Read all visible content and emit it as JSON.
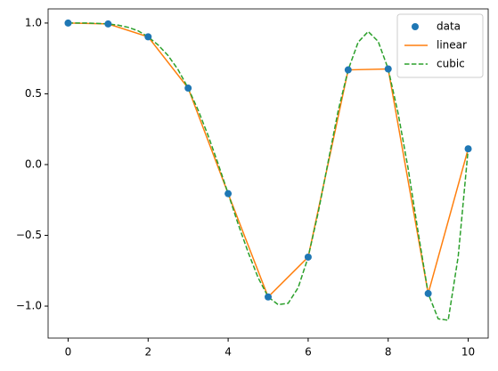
{
  "chart_data": {
    "type": "line",
    "series": [
      {
        "name": "data",
        "color": "#1f77b4",
        "style": "markers",
        "x": [
          0,
          1,
          2,
          3,
          4,
          5,
          6,
          7,
          8,
          9,
          10
        ],
        "values": [
          1.0,
          0.9938,
          0.9028,
          0.5403,
          -0.2055,
          -0.9355,
          -0.6536,
          0.669,
          0.6757,
          -0.9111,
          0.1114
        ]
      },
      {
        "name": "linear",
        "color": "#ff7f0e",
        "style": "solid",
        "x": [
          0,
          1,
          2,
          3,
          4,
          5,
          6,
          7,
          8,
          9,
          10
        ],
        "values": [
          1.0,
          0.9938,
          0.9028,
          0.5403,
          -0.2055,
          -0.9355,
          -0.6536,
          0.669,
          0.6757,
          -0.9111,
          0.1114
        ]
      },
      {
        "name": "cubic",
        "color": "#2ca02c",
        "style": "dashed",
        "x": [
          0,
          0.25,
          0.5,
          0.75,
          1,
          1.25,
          1.5,
          1.75,
          2,
          2.25,
          2.5,
          2.75,
          3,
          3.25,
          3.5,
          3.75,
          4,
          4.25,
          4.5,
          4.75,
          5,
          5.25,
          5.5,
          5.75,
          6,
          6.25,
          6.5,
          6.75,
          7,
          7.25,
          7.5,
          7.75,
          8,
          8.25,
          8.5,
          8.75,
          9,
          9.25,
          9.5,
          9.75,
          10
        ],
        "values": [
          1.0,
          1.0,
          1.0,
          0.997,
          0.994,
          0.985,
          0.97,
          0.945,
          0.903,
          0.845,
          0.77,
          0.67,
          0.54,
          0.385,
          0.205,
          0.005,
          -0.205,
          -0.42,
          -0.62,
          -0.8,
          -0.935,
          -0.99,
          -0.98,
          -0.87,
          -0.654,
          -0.34,
          0.02,
          0.38,
          0.669,
          0.865,
          0.94,
          0.87,
          0.676,
          0.36,
          -0.03,
          -0.48,
          -0.911,
          -1.09,
          -1.1,
          -0.65,
          0.111
        ]
      }
    ],
    "xlim": [
      -0.5,
      10.5
    ],
    "ylim": [
      -1.226,
      1.1
    ],
    "xticks": [
      0,
      2,
      4,
      6,
      8,
      10
    ],
    "yticks": [
      {
        "value": -1,
        "label": "−1.0"
      },
      {
        "value": -0.5,
        "label": "−0.5"
      },
      {
        "value": 0,
        "label": "0.0"
      },
      {
        "value": 0.5,
        "label": "0.5"
      },
      {
        "value": 1,
        "label": "1.0"
      }
    ],
    "legend": "upper right"
  }
}
